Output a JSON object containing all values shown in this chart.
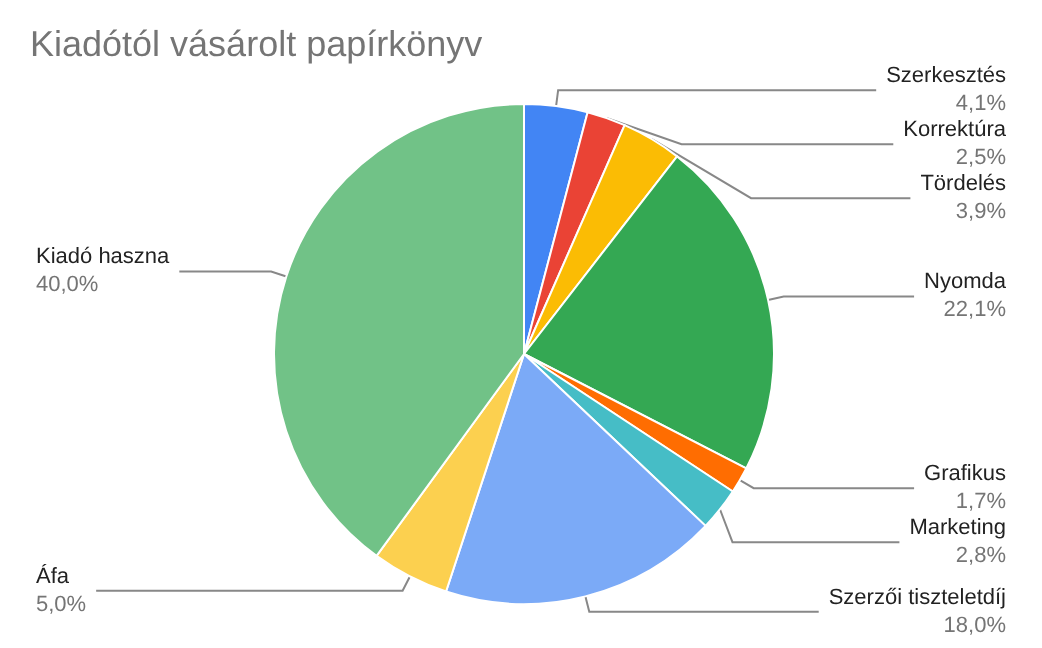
{
  "chart_data": {
    "type": "pie",
    "title": "Kiadótól vásárolt papírkönyv",
    "categories": [
      "Szerkesztés",
      "Korrektúra",
      "Tördelés",
      "Nyomda",
      "Grafikus",
      "Marketing",
      "Szerzői tiszteletdíj",
      "Áfa",
      "Kiadó haszna"
    ],
    "values": [
      4.1,
      2.5,
      3.9,
      22.1,
      1.7,
      2.8,
      18.0,
      5.0,
      40.0
    ],
    "value_labels": [
      "4,1%",
      "2,5%",
      "3,9%",
      "22,1%",
      "1,7%",
      "2,8%",
      "18,0%",
      "5,0%",
      "40,0%"
    ],
    "colors": [
      "#4285f4",
      "#ea4335",
      "#fbbc04",
      "#34a853",
      "#ff6d01",
      "#46bdc6",
      "#7baaf7",
      "#fcd04f",
      "#71c287"
    ]
  }
}
